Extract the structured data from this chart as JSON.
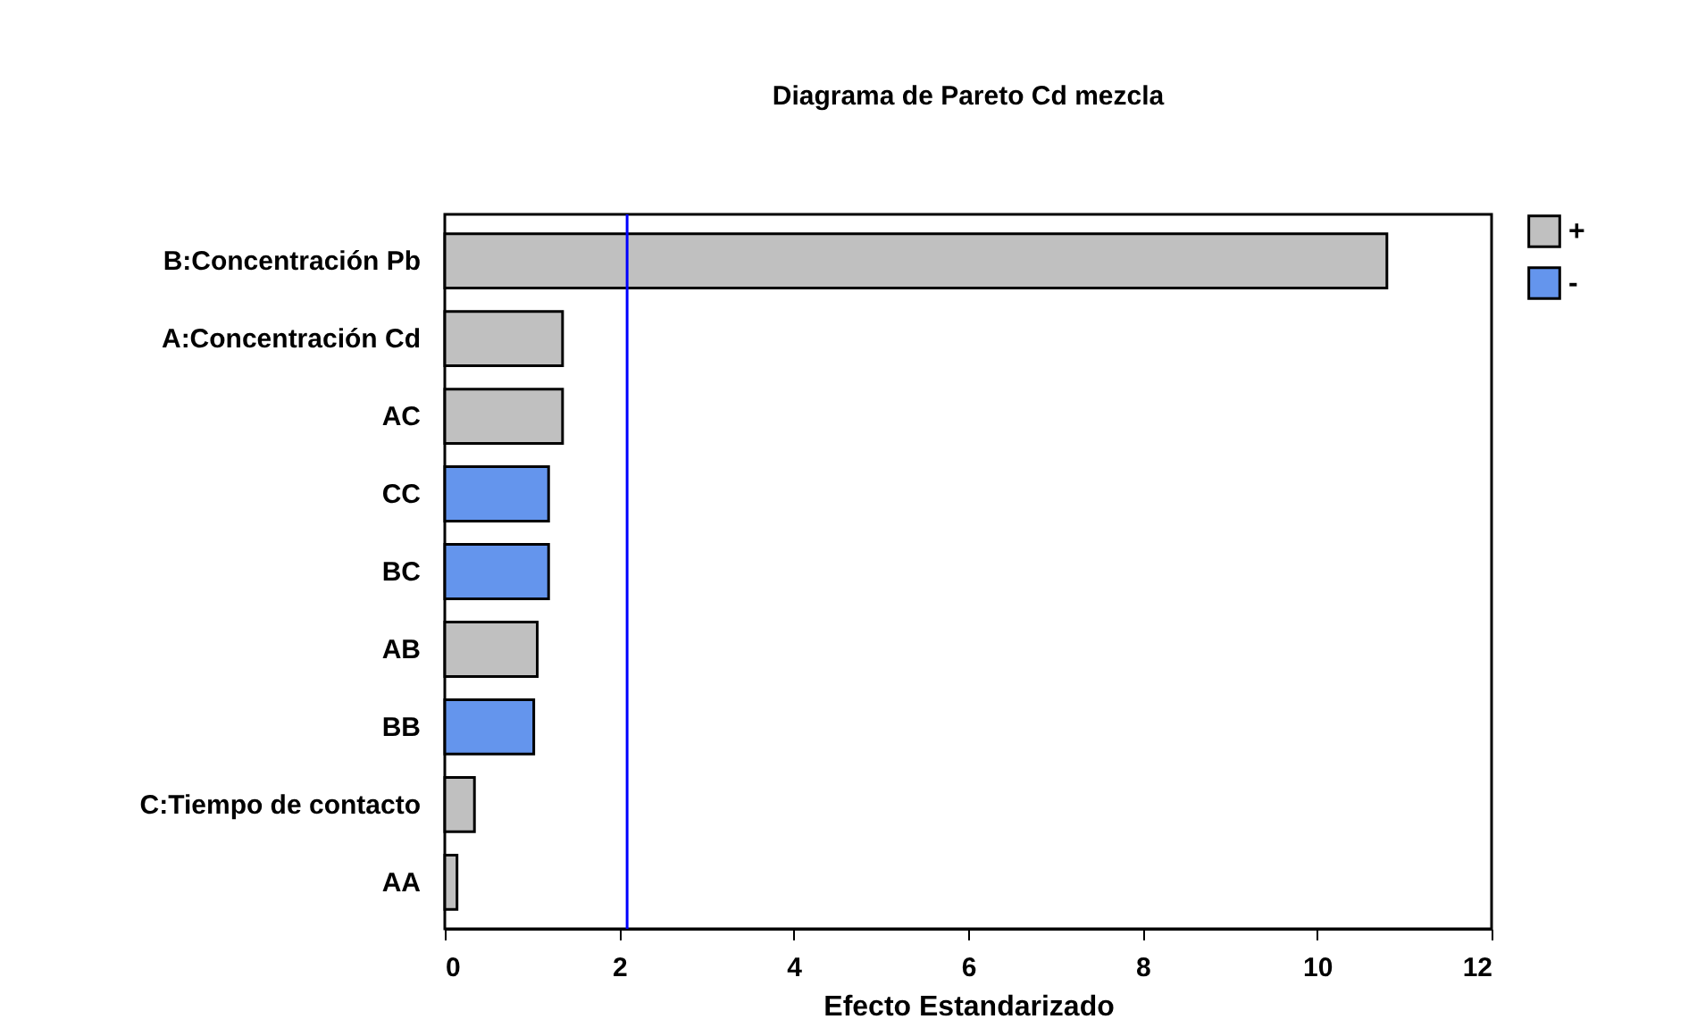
{
  "chart_data": {
    "type": "bar",
    "orientation": "horizontal",
    "title": "Diagrama de Pareto Cd mezcla",
    "xlabel": "Efecto Estandarizado",
    "categories": [
      "B:Concentración Pb",
      "A:Concentración Cd",
      "AC",
      "CC",
      "BC",
      "AB",
      "BB",
      "C:Tiempo de contacto",
      "AA"
    ],
    "series": [
      {
        "name": "+",
        "color": "#c0c0c0",
        "values": [
          10.8,
          1.35,
          1.35,
          null,
          null,
          1.06,
          null,
          0.34,
          0.14
        ]
      },
      {
        "name": "-",
        "color": "#6495ed",
        "values": [
          null,
          null,
          null,
          1.19,
          1.19,
          null,
          1.02,
          null,
          null
        ]
      }
    ],
    "xlim": [
      0,
      12
    ],
    "xticks": [
      0,
      2,
      4,
      6,
      8,
      10,
      12
    ],
    "ref_lines": [
      {
        "axis": "x",
        "value": 2.09,
        "color": "#0000ff"
      }
    ],
    "grid": false,
    "legend": "top right"
  }
}
